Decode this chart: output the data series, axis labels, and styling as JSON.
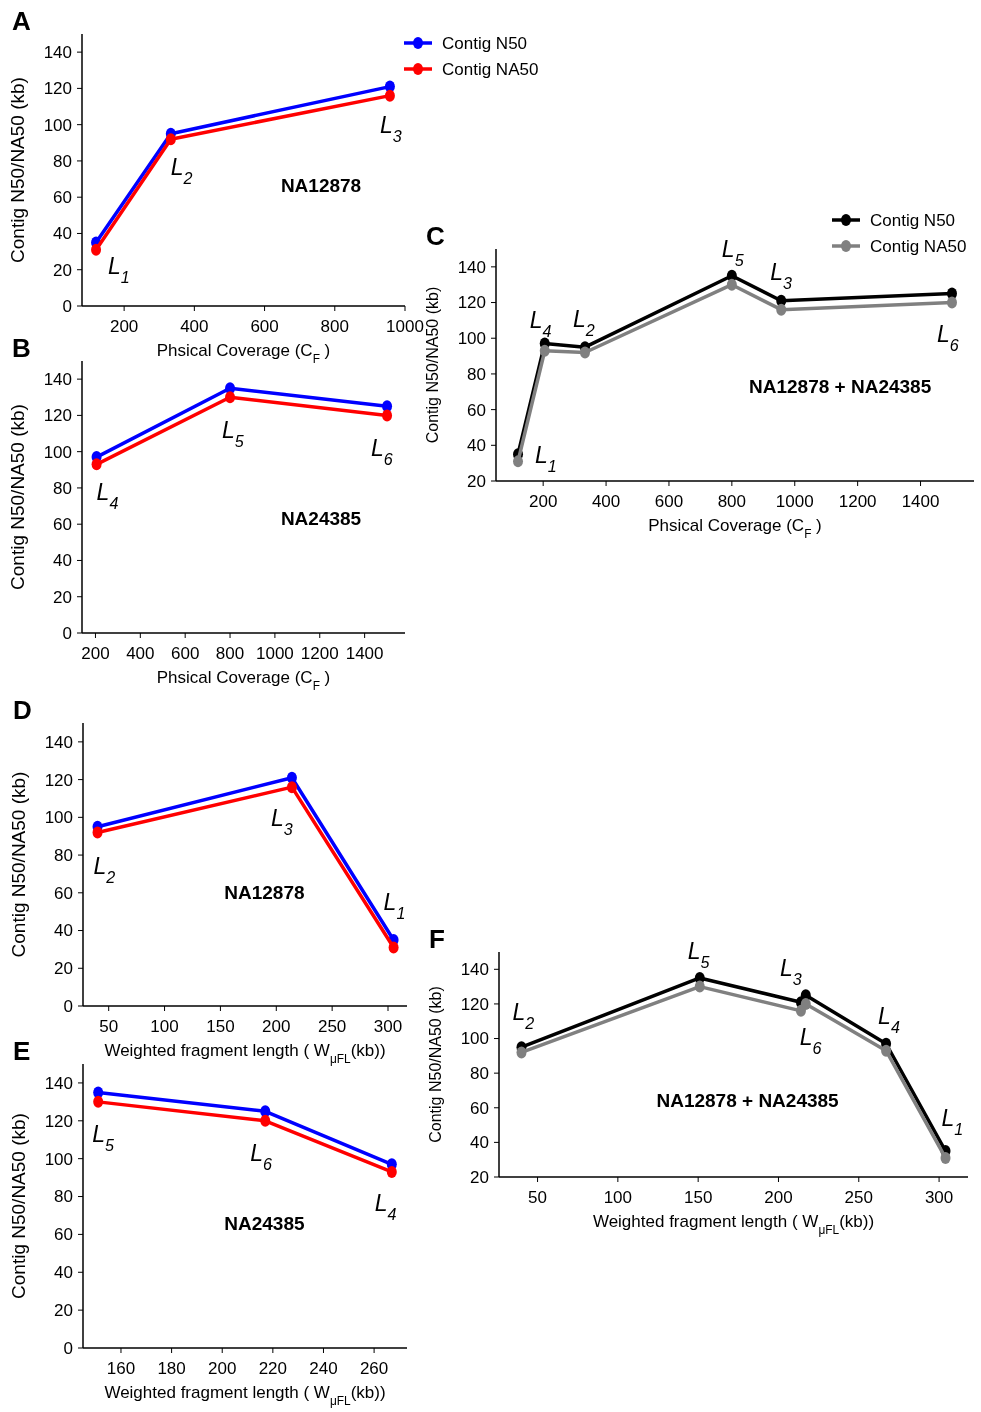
{
  "chart_data": [
    {
      "type": "line",
      "title": "A",
      "xlabel": "Phsical Coverage (C$_{F}$ )",
      "ylabel": "Contig N50/NA50 (kb)",
      "x": [
        120,
        333,
        957
      ],
      "series": [
        {
          "name": "Contig N50",
          "color": "#0000ff",
          "values": [
            35,
            95,
            121
          ]
        },
        {
          "name": "Contig NA50",
          "color": "#ff0000",
          "values": [
            31,
            92,
            116
          ]
        }
      ],
      "xlim": [
        80,
        1000
      ],
      "xticks": [
        200,
        400,
        600,
        800,
        1000
      ],
      "ylim": [
        0,
        150
      ],
      "yticks": [
        0,
        20,
        40,
        60,
        80,
        100,
        120,
        140
      ],
      "legend": "top right",
      "marker": "circle",
      "line_style": "solid",
      "annotations": [
        {
          "text": "L$_{1}$",
          "x": 120,
          "y": 35
        },
        {
          "text": "L$_{2}$",
          "x": 333,
          "y": 95
        },
        {
          "text": "L$_{3}$",
          "x": 957,
          "y": 121
        },
        "NA12878"
      ]
    },
    {
      "type": "line",
      "title": "B",
      "xlabel": "Phsical Coverage (C$_{F}$ )",
      "ylabel": "Contig N50/NA50 (kb)",
      "x": [
        205,
        800,
        1500
      ],
      "series": [
        {
          "color": "#0000ff",
          "values": [
            97,
            135,
            125
          ]
        },
        {
          "color": "#ff0000",
          "values": [
            93,
            130,
            120
          ]
        }
      ],
      "xlim": [
        140,
        1580
      ],
      "xticks": [
        200,
        400,
        600,
        800,
        1000,
        1200,
        1400
      ],
      "ylim": [
        0,
        150
      ],
      "yticks": [
        0,
        20,
        40,
        60,
        80,
        100,
        120,
        140
      ],
      "marker": "circle",
      "line_style": "solid",
      "annotations": [
        {
          "text": "L$_{4}$",
          "x": 205,
          "y": 97
        },
        {
          "text": "L$_{5}$",
          "x": 800,
          "y": 135
        },
        {
          "text": "L$_{6}$",
          "x": 1500,
          "y": 125
        },
        "NA24385"
      ]
    },
    {
      "type": "line",
      "title": "C",
      "xlabel": "Phsical Coverage (C$_{F}$ )",
      "ylabel": "Contig N50/NA50 (kb)",
      "x": [
        120,
        205,
        333,
        800,
        957,
        1500
      ],
      "series": [
        {
          "name": "Contig N50",
          "color": "#000000",
          "values": [
            35,
            97,
            95,
            135,
            121,
            125
          ]
        },
        {
          "name": "Contig NA50",
          "color": "#808080",
          "values": [
            31,
            93,
            92,
            130,
            116,
            120
          ]
        }
      ],
      "xlim": [
        50,
        1570
      ],
      "xticks": [
        200,
        400,
        600,
        800,
        1000,
        1200,
        1400
      ],
      "ylim": [
        20,
        150
      ],
      "yticks": [
        20,
        40,
        60,
        80,
        100,
        120,
        140
      ],
      "legend": "top right",
      "marker": "circle",
      "line_style": "solid",
      "annotations": [
        {
          "text": "L$_{1}$",
          "x": 120,
          "y": 35
        },
        {
          "text": "L$_{4}$",
          "x": 205,
          "y": 97
        },
        {
          "text": "L$_{2}$",
          "x": 333,
          "y": 95
        },
        {
          "text": "L$_{5}$",
          "x": 800,
          "y": 135
        },
        {
          "text": "L$_{3}$",
          "x": 957,
          "y": 121
        },
        {
          "text": "L$_{6}$",
          "x": 1500,
          "y": 125
        },
        "NA12878 + NA24385"
      ]
    },
    {
      "type": "line",
      "title": "D",
      "xlabel": "Weighted fragment length ( W$_{μFL}$(kb))",
      "ylabel": "Contig N50/NA50 (kb)",
      "x": [
        40,
        214,
        305
      ],
      "series": [
        {
          "color": "#0000ff",
          "values": [
            95,
            121,
            35
          ]
        },
        {
          "color": "#ff0000",
          "values": [
            92,
            116,
            31
          ]
        }
      ],
      "xlim": [
        27,
        317
      ],
      "xticks": [
        50,
        100,
        150,
        200,
        250,
        300
      ],
      "ylim": [
        0,
        150
      ],
      "yticks": [
        0,
        20,
        40,
        60,
        80,
        100,
        120,
        140
      ],
      "marker": "circle",
      "line_style": "solid",
      "annotations": [
        {
          "text": "L$_{2}$",
          "x": 40,
          "y": 95
        },
        {
          "text": "L$_{3}$",
          "x": 214,
          "y": 121
        },
        {
          "text": "L$_{1}$",
          "x": 305,
          "y": 35
        },
        "NA12878"
      ]
    },
    {
      "type": "line",
      "title": "E",
      "xlabel": "Weighted fragment length ( W$_{μFL}$(kb))",
      "ylabel": "Contig N50/NA50 (kb)",
      "x": [
        151,
        217,
        267
      ],
      "series": [
        {
          "color": "#0000ff",
          "values": [
            135,
            125,
            97
          ]
        },
        {
          "color": "#ff0000",
          "values": [
            130,
            120,
            93
          ]
        }
      ],
      "xlim": [
        145,
        273
      ],
      "xticks": [
        160,
        180,
        200,
        220,
        240,
        260
      ],
      "ylim": [
        0,
        150
      ],
      "yticks": [
        0,
        20,
        40,
        60,
        80,
        100,
        120,
        140
      ],
      "marker": "circle",
      "line_style": "solid",
      "annotations": [
        {
          "text": "L$_{5}$",
          "x": 151,
          "y": 135
        },
        {
          "text": "L$_{6}$",
          "x": 217,
          "y": 125
        },
        {
          "text": "L$_{4}$",
          "x": 267,
          "y": 97
        },
        "NA24385"
      ]
    },
    {
      "type": "line",
      "title": "F",
      "xlabel": "Weighted fragment length ( W$_{μFL}$(kb))",
      "ylabel": "Contig N50/NA50 (kb)",
      "x": [
        40,
        151,
        214,
        217,
        267,
        304
      ],
      "series": [
        {
          "color": "#000000",
          "values": [
            95,
            135,
            121,
            125,
            97,
            35
          ]
        },
        {
          "color": "#808080",
          "values": [
            92,
            130,
            116,
            120,
            93,
            31
          ]
        }
      ],
      "xlim": [
        26,
        318
      ],
      "xticks": [
        50,
        100,
        150,
        200,
        250,
        300
      ],
      "ylim": [
        20,
        150
      ],
      "yticks": [
        20,
        40,
        60,
        80,
        100,
        120,
        140
      ],
      "marker": "circle",
      "line_style": "solid",
      "annotations": [
        {
          "text": "L$_{2}$",
          "x": 40,
          "y": 95
        },
        {
          "text": "L$_{5}$",
          "x": 151,
          "y": 135
        },
        {
          "text": "L$_{3}$",
          "x": 214,
          "y": 121
        },
        {
          "text": "L$_{6}$",
          "x": 217,
          "y": 125
        },
        {
          "text": "L$_{4}$",
          "x": 267,
          "y": 97
        },
        {
          "text": "L$_{1}$",
          "x": 304,
          "y": 35
        },
        "NA12878 + NA24385"
      ]
    }
  ]
}
